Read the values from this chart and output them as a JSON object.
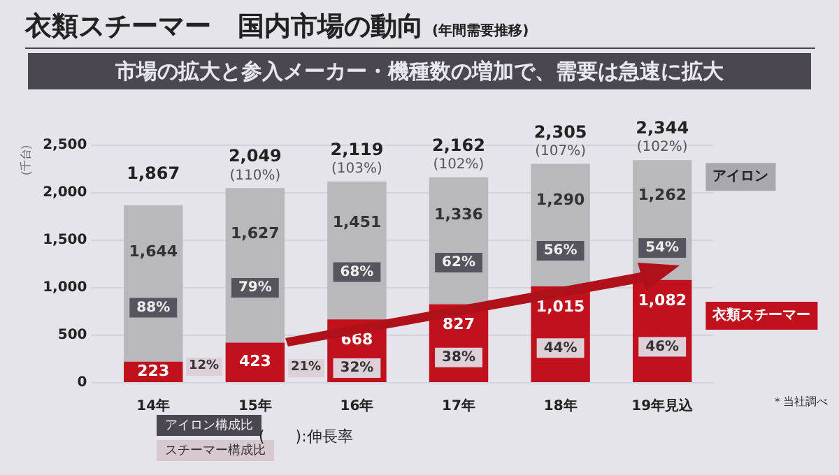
{
  "chart_data": {
    "type": "bar",
    "stacked": true,
    "title": "衣類スチーマー　国内市場の動向",
    "subtitle": "市場の拡大と参入メーカー・機種数の増加で、需要は急速に拡大",
    "ylabel": "(千台)",
    "categories": [
      "14年",
      "15年",
      "16年",
      "17年",
      "18年",
      "19年見込"
    ],
    "series": [
      {
        "name": "衣類スチーマー",
        "color": "#c0111c",
        "values": [
          223,
          423,
          668,
          827,
          1015,
          1082
        ],
        "value_labels": [
          "223",
          "423",
          "668",
          "827",
          "1,015",
          "1,082"
        ]
      },
      {
        "name": "アイロン",
        "color": "#b9b8bd",
        "values": [
          1644,
          1627,
          1451,
          1336,
          1290,
          1262
        ],
        "value_labels": [
          "1,644",
          "1,627",
          "1,451",
          "1,336",
          "1,290",
          "1,262"
        ]
      }
    ],
    "totals": [
      "1,867",
      "2,049",
      "2,119",
      "2,162",
      "2,305",
      "2,344"
    ],
    "ylim": [
      0,
      2500
    ],
    "yticks": [
      0,
      500,
      {
        "value": 1000,
        "label": "1,000"
      },
      {
        "value": 1500,
        "label": "1,500"
      },
      {
        "value": 2000,
        "label": "2,000"
      },
      {
        "value": 2500,
        "label": "2,500"
      }
    ],
    "grid": "y",
    "legend": false,
    "annotations": [
      "(年間需要推移)",
      "＊当社調べ",
      "アイロン構成比",
      "スチーマー構成比",
      "(　　):伸長率",
      "12%",
      "21%",
      {
        "text": "88%",
        "x": "14年",
        "y": 790
      },
      {
        "text": "79%",
        "x": "15年",
        "y": 1000
      },
      {
        "text": "68%",
        "x": "16年",
        "y": 1165
      },
      {
        "text": "62%",
        "x": "17年",
        "y": 1265
      },
      {
        "text": "56%",
        "x": "18年",
        "y": 1390
      },
      {
        "text": "54%",
        "x": "19年見込",
        "y": 1420
      },
      {
        "text": "32%",
        "x": "16年",
        "y": 154
      },
      {
        "text": "38%",
        "x": "17年",
        "y": 267
      },
      {
        "text": "44%",
        "x": "18年",
        "y": 365
      },
      {
        "text": "46%",
        "x": "19年見込",
        "y": 379
      },
      {
        "text": "(110%)",
        "x": "15年",
        "y": 2049
      },
      {
        "text": "(103%)",
        "x": "16年",
        "y": 2119
      },
      {
        "text": "(102%)",
        "x": "17年",
        "y": 2162
      },
      {
        "text": "(107%)",
        "x": "18年",
        "y": 2305
      },
      {
        "text": "(102%)",
        "x": "19年見込",
        "y": 2344
      }
    ]
  }
}
